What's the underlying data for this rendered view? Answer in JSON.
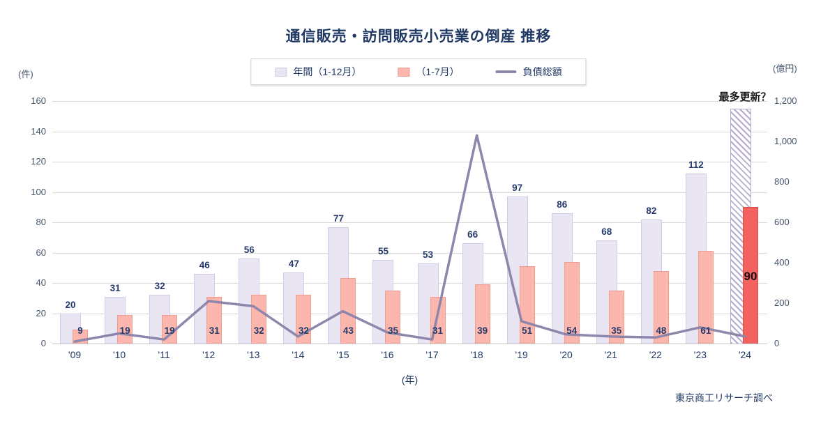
{
  "title": "通信販売・訪問販売小売業の倒産 推移",
  "units": {
    "left": "(件)",
    "right": "(億円)",
    "x": "(年)"
  },
  "legend": {
    "annual": "年間（1-12月）",
    "partial": "（1-7月）",
    "debt": "負債総額"
  },
  "annotation": "最多更新？",
  "credit": "東京商工リサーチ調べ",
  "colors": {
    "title": "#1f3864",
    "axis_text": "#44546a",
    "label_text": "#243a6b",
    "grid": "#d9d9d9",
    "annual_fill": "#eae5f3",
    "annual_border": "#d4cbe6",
    "partial_fill": "#fbb7ae",
    "partial_border": "#f49b8f",
    "highlight_fill": "#f3625f",
    "highlight_border": "#e04f4d",
    "line": "#8e86ab",
    "hatch": "#b7abd0"
  },
  "chart_data": {
    "type": "bar",
    "title": "通信販売・訪問販売小売業の倒産 推移",
    "categories": [
      "'09",
      "'10",
      "'11",
      "'12",
      "'13",
      "'14",
      "'15",
      "'16",
      "'17",
      "'18",
      "'19",
      "'20",
      "'21",
      "'22",
      "'23",
      "'24"
    ],
    "series": [
      {
        "name": "年間（1-12月）",
        "type": "bar",
        "axis": "left",
        "values": [
          20,
          31,
          32,
          46,
          56,
          47,
          77,
          55,
          53,
          66,
          97,
          86,
          68,
          82,
          112,
          155
        ],
        "hatched_index": 15,
        "note": "2024 annual bar is a hatched projection (approx. 155), labeled 最多更新？, no data label shown"
      },
      {
        "name": "（1-7月）",
        "type": "bar",
        "axis": "left",
        "values": [
          9,
          19,
          19,
          31,
          32,
          32,
          43,
          35,
          31,
          39,
          51,
          54,
          35,
          48,
          61,
          90
        ],
        "highlight_index": 15
      },
      {
        "name": "負債総額",
        "type": "line",
        "axis": "right",
        "values": [
          10,
          50,
          20,
          210,
          185,
          35,
          160,
          55,
          20,
          1030,
          110,
          45,
          35,
          30,
          80,
          35
        ]
      }
    ],
    "ylim_left": [
      0,
      160
    ],
    "left_ticks": [
      0,
      20,
      40,
      60,
      80,
      100,
      120,
      140,
      160
    ],
    "ylim_right": [
      0,
      1200
    ],
    "right_ticks": [
      "0",
      "200",
      "400",
      "600",
      "800",
      "1,000",
      "1,200"
    ],
    "xlabel": "(年)",
    "ylabel_left": "(件)",
    "ylabel_right": "(億円)",
    "grid": true,
    "legend_position": "top"
  }
}
